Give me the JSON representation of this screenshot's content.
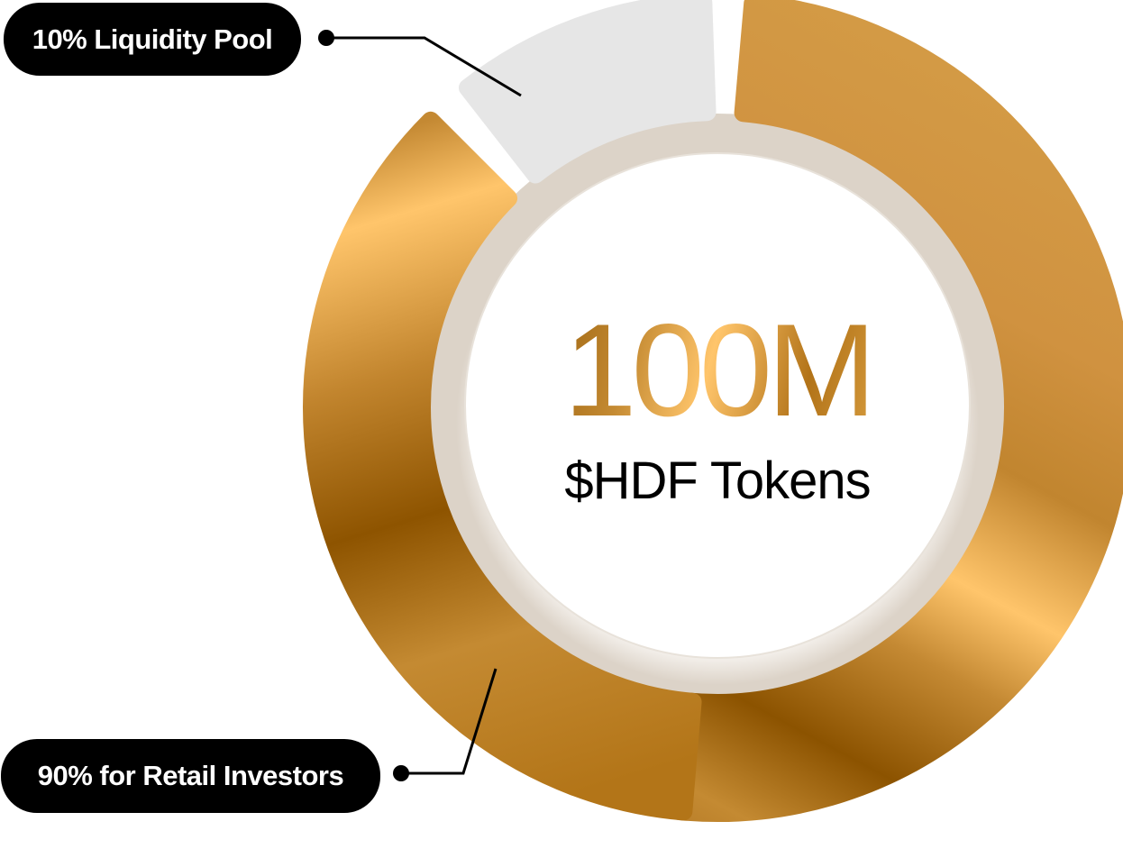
{
  "chart_data": {
    "type": "pie",
    "variant": "donut",
    "categories": [
      "10% Liquidity Pool",
      "90% for Retail Investors"
    ],
    "values": [
      10,
      90
    ],
    "series": [
      {
        "name": "10% Liquidity Pool",
        "value": 10,
        "color": "#e6e6e6"
      },
      {
        "name": "90% for Retail Investors",
        "value": 90,
        "color": "#d49a42"
      }
    ],
    "center_total": "100M",
    "center_unit": "$HDF Tokens",
    "legend": "callouts-left"
  },
  "labels": {
    "liquidity": "10% Liquidity Pool",
    "retail": "90% for Retail Investors"
  },
  "colors": {
    "gold_dark": "#8a5200",
    "gold_mid": "#c98d35",
    "gold_light": "#ffc56b",
    "track_gray": "#e6e6e6",
    "callout": "#000000"
  }
}
